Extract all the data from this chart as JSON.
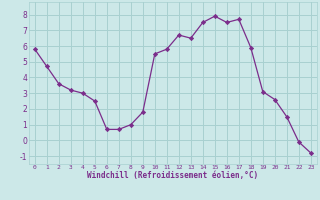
{
  "x": [
    0,
    1,
    2,
    3,
    4,
    5,
    6,
    7,
    8,
    9,
    10,
    11,
    12,
    13,
    14,
    15,
    16,
    17,
    18,
    19,
    20,
    21,
    22,
    23
  ],
  "y": [
    5.8,
    4.7,
    3.6,
    3.2,
    3.0,
    2.5,
    0.7,
    0.7,
    1.0,
    1.8,
    5.5,
    5.8,
    6.7,
    6.5,
    7.5,
    7.9,
    7.5,
    7.7,
    5.9,
    3.1,
    2.6,
    1.5,
    -0.1,
    -0.8
  ],
  "line_color": "#7b2d8b",
  "marker": "D",
  "marker_size": 2.2,
  "plot_bg": "#cce8e8",
  "grid_color": "#a8d0d0",
  "fig_bg": "#cce8e8",
  "xlabel": "Windchill (Refroidissement éolien,°C)",
  "xlabel_color": "#7b2d8b",
  "tick_color": "#7b2d8b",
  "ylim": [
    -1.5,
    8.8
  ],
  "xlim": [
    -0.5,
    23.5
  ],
  "yticks": [
    -1,
    0,
    1,
    2,
    3,
    4,
    5,
    6,
    7,
    8
  ],
  "xticks": [
    0,
    1,
    2,
    3,
    4,
    5,
    6,
    7,
    8,
    9,
    10,
    11,
    12,
    13,
    14,
    15,
    16,
    17,
    18,
    19,
    20,
    21,
    22,
    23
  ]
}
